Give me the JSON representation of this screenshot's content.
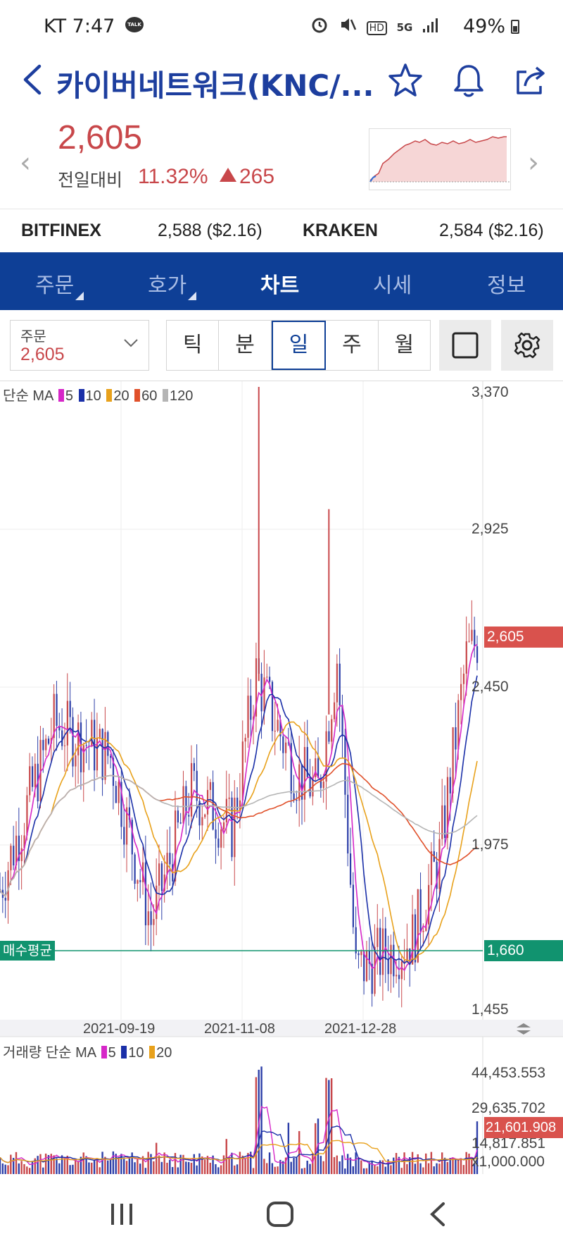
{
  "status": {
    "carrier_time": "KT 7:47",
    "talk_badge": "TALK",
    "icons": [
      "alarm-icon",
      "mute-icon",
      "hd-icon",
      "5g-icon",
      "signal-icon"
    ],
    "network": "5G",
    "hd": "HD",
    "battery": "49%"
  },
  "header": {
    "title": "카이버네트워크(KNC/...",
    "icons": [
      "back-icon",
      "star-icon",
      "bell-icon",
      "share-icon"
    ]
  },
  "quote": {
    "price": "2,605",
    "prev_label": "전일대비",
    "change_pct": "11.32%",
    "change_amount": "265"
  },
  "exchanges": [
    {
      "name": "BITFINEX",
      "value": "2,588 ($2.16)"
    },
    {
      "name": "KRAKEN",
      "value": "2,584 ($2.16)"
    }
  ],
  "tabs": [
    "주문",
    "호가",
    "차트",
    "시세",
    "정보"
  ],
  "active_tab": "차트",
  "toolbar": {
    "order_label": "주문",
    "order_value": "2,605",
    "periods": [
      "틱",
      "분",
      "일",
      "주",
      "월"
    ],
    "active_period": "일"
  },
  "colors": {
    "up": "#c8474a",
    "down": "#2c3ea8",
    "brand": "#0e3f96",
    "ma5": "#d627c8",
    "ma10": "#1a2fa8",
    "ma20": "#e8a11b",
    "ma60": "#e0502a",
    "ma120": "#b5b5b5",
    "avg": "#11936f"
  },
  "chart_data": [
    {
      "type": "candlestick",
      "legend_prefix": "단순 MA",
      "ma_periods": [
        "5",
        "10",
        "20",
        "60",
        "120"
      ],
      "y_ticks": [
        "3,370",
        "2,925",
        "2,450",
        "1,975",
        "1,455"
      ],
      "ylim": [
        1455,
        3370
      ],
      "x_ticks": [
        "2021-09-19",
        "2021-11-08",
        "2021-12-28"
      ],
      "current_price_tag": "2,605",
      "current_price": 2605,
      "avg_buy_label": "매수평균",
      "avg_buy_tag": "1,660",
      "avg_buy": 1660,
      "close_trend": [
        {
          "x": "2021-07-31",
          "y": 1850
        },
        {
          "x": "2021-08-20",
          "y": 2350
        },
        {
          "x": "2021-09-10",
          "y": 2250
        },
        {
          "x": "2021-09-25",
          "y": 1750
        },
        {
          "x": "2021-10-10",
          "y": 2150
        },
        {
          "x": "2021-10-25",
          "y": 2030
        },
        {
          "x": "2021-11-03",
          "y": 2500
        },
        {
          "x": "2021-11-18",
          "y": 2200
        },
        {
          "x": "2021-11-26",
          "y": 2150
        },
        {
          "x": "2021-12-03",
          "y": 2550
        },
        {
          "x": "2021-12-10",
          "y": 1600
        },
        {
          "x": "2021-12-20",
          "y": 1650
        },
        {
          "x": "2021-12-31",
          "y": 1700
        },
        {
          "x": "2022-01-10",
          "y": 1950
        },
        {
          "x": "2022-01-20",
          "y": 2550
        },
        {
          "x": "2022-01-24",
          "y": 2605
        }
      ],
      "high_spikes": [
        {
          "x": "2021-11-04",
          "y": 3370
        },
        {
          "x": "2021-11-30",
          "y": 3000
        }
      ]
    },
    {
      "type": "bar",
      "legend_prefix": "거래량 단순 MA",
      "ma_periods": [
        "5",
        "10",
        "20"
      ],
      "y_ticks": [
        "44,453.553",
        "29,635.702",
        "14,817.851"
      ],
      "unit_label": "x1,000.000",
      "current_volume_tag": "21,601.908",
      "current_volume": 21601.908,
      "ylim": [
        0,
        44453.553
      ]
    }
  ]
}
